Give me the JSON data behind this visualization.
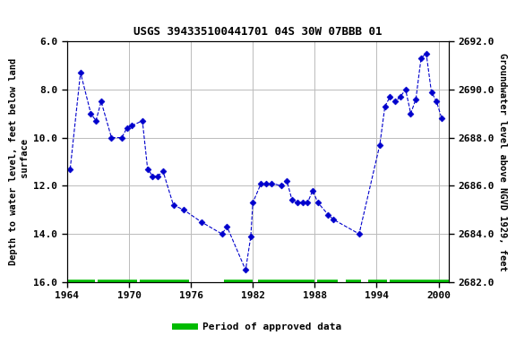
{
  "title": "USGS 394335100441701 04S 30W 07BBB 01",
  "ylabel_left": "Depth to water level, feet below land\n surface",
  "ylabel_right": "Groundwater level above NGVD 1929, feet",
  "ylim_left": [
    16.0,
    6.0
  ],
  "ylim_right": [
    2682.0,
    2692.0
  ],
  "xlim": [
    1964,
    2001
  ],
  "yticks_left": [
    6.0,
    8.0,
    10.0,
    12.0,
    14.0,
    16.0
  ],
  "yticks_right": [
    2682.0,
    2684.0,
    2686.0,
    2688.0,
    2690.0,
    2692.0
  ],
  "xticks": [
    1964,
    1970,
    1976,
    1982,
    1988,
    1994,
    2000
  ],
  "background_color": "#ffffff",
  "grid_color": "#bbbbbb",
  "line_color": "#0000cc",
  "marker_color": "#0000cc",
  "approved_color": "#00bb00",
  "data_years": [
    1964.3,
    1965.3,
    1966.3,
    1966.8,
    1967.3,
    1968.3,
    1969.3,
    1969.8,
    1970.3,
    1971.3,
    1971.8,
    1972.3,
    1972.8,
    1973.3,
    1974.3,
    1975.3,
    1977.0,
    1979.0,
    1979.5,
    1981.3,
    1981.8,
    1982.0,
    1982.8,
    1983.3,
    1983.8,
    1984.8,
    1985.3,
    1985.8,
    1986.3,
    1986.8,
    1987.3,
    1987.8,
    1988.3,
    1989.3,
    1989.8,
    1992.3,
    1994.3,
    1994.8,
    1995.3,
    1995.8,
    1996.3,
    1996.8,
    1997.3,
    1997.8,
    1998.3,
    1998.8,
    1999.3,
    1999.8,
    2000.3
  ],
  "data_depths": [
    11.3,
    7.3,
    9.0,
    9.3,
    8.5,
    10.0,
    10.0,
    9.6,
    9.5,
    9.3,
    11.3,
    11.6,
    11.6,
    11.4,
    12.8,
    13.0,
    13.5,
    14.0,
    13.7,
    15.5,
    14.1,
    12.7,
    11.9,
    11.9,
    11.9,
    12.0,
    11.8,
    12.6,
    12.7,
    12.7,
    12.7,
    12.2,
    12.7,
    13.2,
    13.4,
    14.0,
    10.3,
    8.7,
    8.3,
    8.5,
    8.3,
    8.0,
    9.0,
    8.4,
    6.7,
    6.5,
    8.1,
    8.5,
    9.2
  ],
  "approved_segments": [
    [
      1964.0,
      1966.7
    ],
    [
      1967.0,
      1970.8
    ],
    [
      1971.0,
      1975.8
    ],
    [
      1979.2,
      1982.0
    ],
    [
      1982.5,
      1988.0
    ],
    [
      1988.2,
      1990.2
    ],
    [
      1991.0,
      1992.5
    ],
    [
      1993.2,
      1995.0
    ],
    [
      1995.3,
      2001.0
    ]
  ],
  "legend_label": "Period of approved data"
}
